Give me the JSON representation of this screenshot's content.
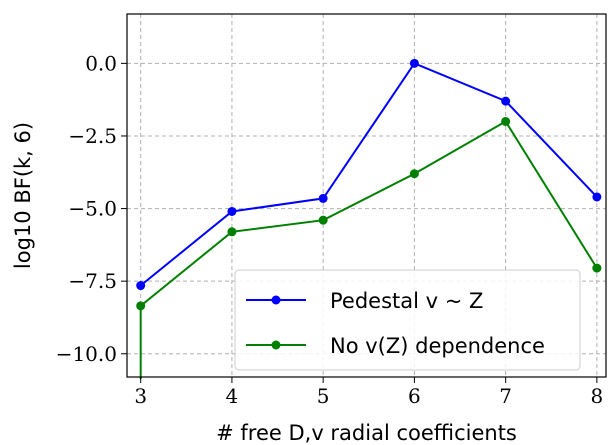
{
  "chart_data": {
    "type": "line",
    "title": "",
    "xlabel": "# free D,v radial coefficients",
    "ylabel": "log10 BF(k, 6)",
    "x": [
      3,
      4,
      5,
      6,
      7,
      8
    ],
    "xlim": [
      2.85,
      8.1
    ],
    "ylim": [
      -10.8,
      1.7
    ],
    "x_ticks": [
      3,
      4,
      5,
      6,
      7,
      8
    ],
    "y_ticks": [
      0.0,
      -2.5,
      -5.0,
      -7.5,
      -10.0
    ],
    "y_tick_labels": [
      "0.0",
      "−2.5",
      "−5.0",
      "−7.5",
      "−10.0"
    ],
    "grid": true,
    "legend_position": "lower-right",
    "series": [
      {
        "name": "Pedestal v ~ Z",
        "color": "#0000ff",
        "values": [
          -7.65,
          -5.1,
          -4.65,
          0.0,
          -1.3,
          -4.6
        ],
        "drop_to_axis_at_first": false
      },
      {
        "name": "No v(Z) dependence",
        "color": "#008000",
        "values": [
          -8.35,
          -5.8,
          -5.4,
          -3.8,
          -2.0,
          -7.05
        ],
        "drop_to_axis_at_first": true
      }
    ]
  }
}
